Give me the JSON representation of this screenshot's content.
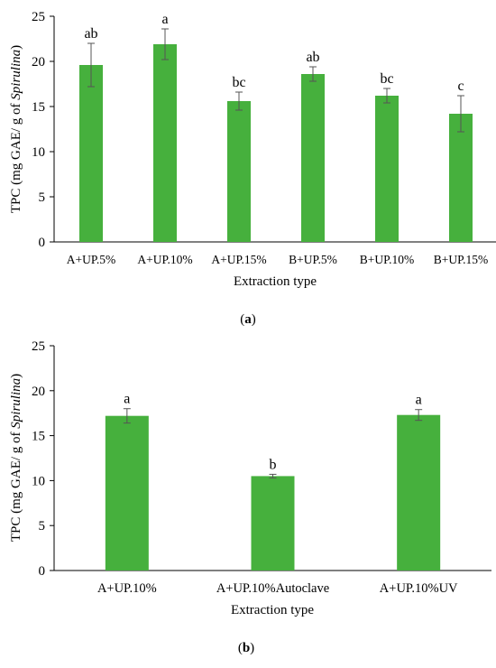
{
  "colors": {
    "bar": "#46b03d",
    "axis": "#000000",
    "error": "#555555"
  },
  "charts": [
    {
      "panel_label": "a",
      "xlabel": "Extraction type",
      "ylabel_prefix": "TPC (mg GAE/ g of ",
      "ylabel_italic": "Spirulina",
      "ylabel_suffix": ")"
    },
    {
      "panel_label": "b",
      "xlabel": "Extraction type",
      "ylabel_prefix": "TPC (mg GAE/ g of ",
      "ylabel_italic": "Spirulina",
      "ylabel_suffix": ")"
    }
  ],
  "chart_data": [
    {
      "type": "bar",
      "title": "",
      "xlabel": "Extraction type",
      "ylabel": "TPC (mg GAE/ g of Spirulina)",
      "ylim": [
        0,
        25
      ],
      "yticks": [
        0,
        5,
        10,
        15,
        20,
        25
      ],
      "grid": false,
      "legend": "none",
      "categories": [
        "A+UP.5%",
        "A+UP.10%",
        "A+UP.15%",
        "B+UP.5%",
        "B+UP.10%",
        "B+UP.15%"
      ],
      "values": [
        19.6,
        21.9,
        15.6,
        18.6,
        16.2,
        14.2
      ],
      "error": [
        2.4,
        1.7,
        1.0,
        0.8,
        0.8,
        2.0
      ],
      "letters": [
        "ab",
        "a",
        "bc",
        "ab",
        "bc",
        "c"
      ]
    },
    {
      "type": "bar",
      "title": "",
      "xlabel": "Extraction type",
      "ylabel": "TPC (mg GAE/ g of Spirulina)",
      "ylim": [
        0,
        25
      ],
      "yticks": [
        0,
        5,
        10,
        15,
        20,
        25
      ],
      "grid": false,
      "legend": "none",
      "categories": [
        "A+UP.10%",
        "A+UP.10%Autoclave",
        "A+UP.10%UV"
      ],
      "values": [
        17.2,
        10.5,
        17.3
      ],
      "error": [
        0.8,
        0.2,
        0.6
      ],
      "letters": [
        "a",
        "b",
        "a"
      ]
    }
  ]
}
